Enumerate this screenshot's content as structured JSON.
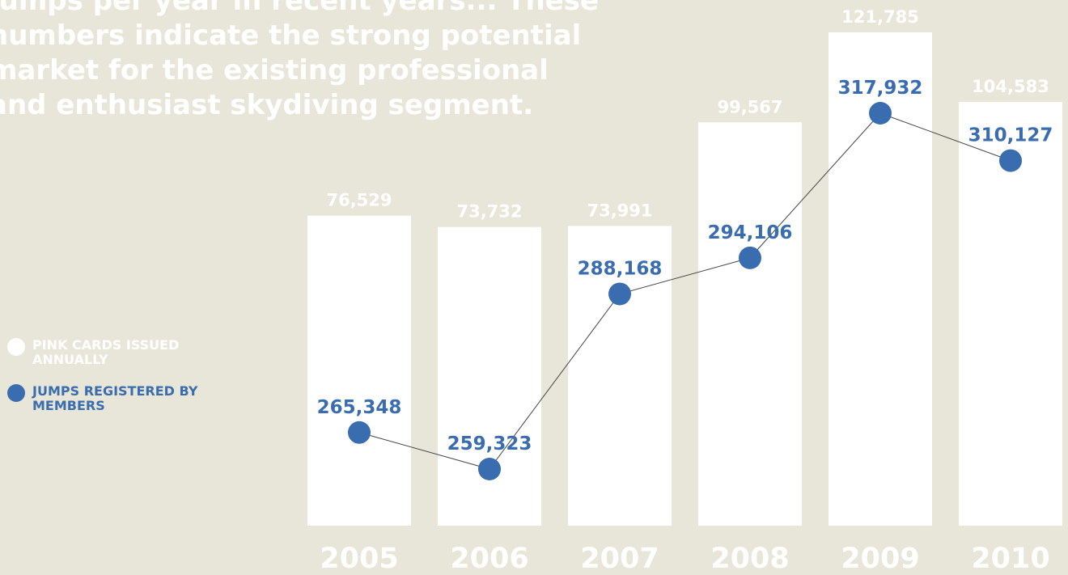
{
  "chart_data": {
    "type": "bar_line",
    "text_lines": [
      "Jumps per year in recent years... These",
      "numbers indicate the strong potential",
      "market for the existing professional",
      "and enthusiast skydiving segment."
    ],
    "categories": [
      "2005",
      "2006",
      "2007",
      "2008",
      "2009",
      "2010"
    ],
    "series": [
      {
        "name": "PINK CARDS ISSUED ANNUALLY",
        "color": "#ffffff",
        "values": [
          76529,
          73732,
          73991,
          99567,
          121785,
          104583
        ],
        "value_labels": [
          "76,529",
          "73,732",
          "73,991",
          "99,567",
          "121,785",
          "104,583"
        ]
      },
      {
        "name": "JUMPS REGISTERED BY MEMBERS",
        "color": "#3a6db0",
        "axis": "y2",
        "values": [
          265348,
          259323,
          288168,
          294106,
          317932,
          310127
        ],
        "value_labels": [
          "265,348",
          "259,323",
          "288,168",
          "294,106",
          "317,932",
          "310,127"
        ]
      }
    ]
  }
}
